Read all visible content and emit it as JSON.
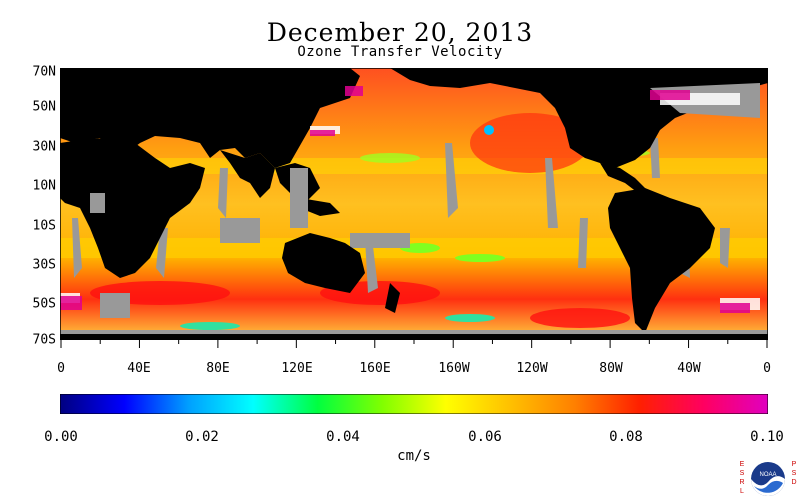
{
  "title": "December 20, 2013",
  "subtitle": "Ozone Transfer Velocity",
  "lat_labels": [
    "70N",
    "50N",
    "30N",
    "10N",
    "10S",
    "30S",
    "50S",
    "70S"
  ],
  "lon_labels": [
    "0",
    "40E",
    "80E",
    "120E",
    "160E",
    "160W",
    "120W",
    "80W",
    "40W",
    "0"
  ],
  "colorbar": {
    "ticks": [
      "0.00",
      "0.02",
      "0.04",
      "0.06",
      "0.08",
      "0.10"
    ],
    "units": "cm/s",
    "colors": [
      "#000080",
      "#0000ff",
      "#00a0ff",
      "#00ffff",
      "#00ff40",
      "#80ff00",
      "#ffff00",
      "#ffc000",
      "#ff8000",
      "#ff2000",
      "#ff0060",
      "#e000c0"
    ]
  },
  "colors": {
    "land": "#000000",
    "no_data": "#999999",
    "ocean_base": "#ffa000"
  },
  "logo": {
    "left_text": "ESRL",
    "right_text": "PSD",
    "badge": "NOAA"
  }
}
